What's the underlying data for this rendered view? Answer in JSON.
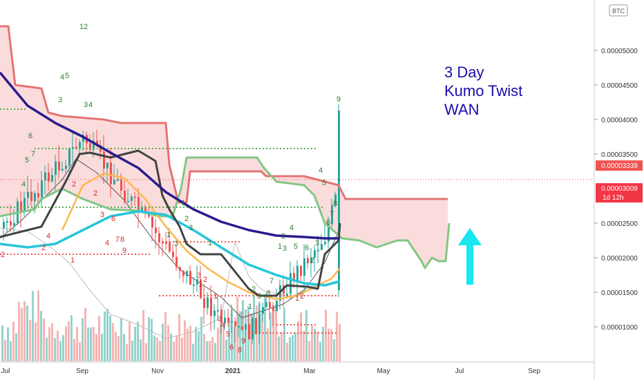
{
  "chart_data": {
    "type": "line",
    "symbol_currency": "BTC",
    "annotation": [
      "3 Day",
      "Kumo Twist",
      "WAN"
    ],
    "y_ticks": [
      "0.00005000",
      "0.00004500",
      "0.00004000",
      "0.00003500",
      "0.00002500",
      "0.00002000",
      "0.00001500",
      "0.00001000"
    ],
    "y_tick_values": [
      5e-05,
      4.5e-05,
      4e-05,
      3.5e-05,
      2.5e-05,
      2e-05,
      1.5e-05,
      1e-05
    ],
    "price_labels": [
      {
        "text": "0.00003339",
        "value": 3.339e-05,
        "color": "#f05350"
      },
      {
        "text": "0.00003009",
        "value": 3.009e-05,
        "color": "#f23645",
        "countdown": "1d 12h"
      }
    ],
    "x_ticks": [
      "Jul",
      "Sep",
      "Nov",
      "2021",
      "Mar",
      "May",
      "Jul",
      "Sep"
    ],
    "ylim": [
      5e-06,
      5.4e-05
    ],
    "colors": {
      "kumo_span_a": "#81c784",
      "kumo_span_b": "#e57373",
      "kumo_fill": "#f9d6d6",
      "slow_ma": "#2a1b8f",
      "mid_ma": "#26c6da",
      "fast_ma": "#ffb74d",
      "kijun": "#424242",
      "annotation": "#1a0dab",
      "arrow": "#18e7f0"
    },
    "series": [
      {
        "key": "kumo_span_b",
        "values": [
          [
            0,
            5.35e-05
          ],
          [
            12,
            5.35e-05
          ],
          [
            22,
            4.5e-05
          ],
          [
            60,
            4.45e-05
          ],
          [
            70,
            4.1e-05
          ],
          [
            90,
            4.05e-05
          ],
          [
            150,
            4e-05
          ],
          [
            175,
            3.95e-05
          ],
          [
            240,
            3.95e-05
          ],
          [
            245,
            3.35e-05
          ],
          [
            258,
            2.8e-05
          ],
          [
            270,
            2.8e-05
          ],
          [
            275,
            3.25e-05
          ],
          [
            345,
            3.25e-05
          ],
          [
            378,
            3.25e-05
          ],
          [
            385,
            3.18e-05
          ],
          [
            440,
            3.18e-05
          ],
          [
            490,
            3.05e-05
          ],
          [
            500,
            2.85e-05
          ],
          [
            648,
            2.85e-05
          ]
        ]
      },
      {
        "key": "kumo_span_a",
        "values": [
          [
            0,
            2.6e-05
          ],
          [
            50,
            2.7e-05
          ],
          [
            60,
            2.85e-05
          ],
          [
            90,
            3e-05
          ],
          [
            120,
            2.85e-05
          ],
          [
            160,
            2.7e-05
          ],
          [
            200,
            2.68e-05
          ],
          [
            230,
            2.6e-05
          ],
          [
            250,
            2.6e-05
          ],
          [
            262,
            3e-05
          ],
          [
            270,
            3.45e-05
          ],
          [
            372,
            3.45e-05
          ],
          [
            382,
            3.3e-05
          ],
          [
            400,
            3.1e-05
          ],
          [
            440,
            3.05e-05
          ],
          [
            455,
            2.9e-05
          ],
          [
            470,
            2.5e-05
          ],
          [
            495,
            2.28e-05
          ],
          [
            520,
            2.25e-05
          ],
          [
            545,
            2.15e-05
          ],
          [
            560,
            2.2e-05
          ],
          [
            575,
            2.25e-05
          ],
          [
            590,
            2.25e-05
          ],
          [
            600,
            2.1e-05
          ],
          [
            610,
            1.95e-05
          ],
          [
            615,
            1.85e-05
          ],
          [
            625,
            2e-05
          ],
          [
            635,
            1.95e-05
          ],
          [
            645,
            1.95e-05
          ],
          [
            650,
            2.5e-05
          ]
        ]
      },
      {
        "key": "slow_ma",
        "values": [
          [
            0,
            4.68e-05
          ],
          [
            40,
            4.2e-05
          ],
          [
            80,
            3.95e-05
          ],
          [
            120,
            3.75e-05
          ],
          [
            160,
            3.52e-05
          ],
          [
            200,
            3.3e-05
          ],
          [
            240,
            2.95e-05
          ],
          [
            280,
            2.7e-05
          ],
          [
            320,
            2.52e-05
          ],
          [
            360,
            2.4e-05
          ],
          [
            400,
            2.32e-05
          ],
          [
            440,
            2.3e-05
          ],
          [
            470,
            2.28e-05
          ],
          [
            492,
            2.28e-05
          ]
        ]
      },
      {
        "key": "mid_ma",
        "values": [
          [
            0,
            2.2e-05
          ],
          [
            40,
            2.15e-05
          ],
          [
            80,
            2.2e-05
          ],
          [
            120,
            2.4e-05
          ],
          [
            160,
            2.6e-05
          ],
          [
            200,
            2.67e-05
          ],
          [
            240,
            2.62e-05
          ],
          [
            280,
            2.4e-05
          ],
          [
            320,
            2.15e-05
          ],
          [
            360,
            1.9e-05
          ],
          [
            400,
            1.75e-05
          ],
          [
            440,
            1.63e-05
          ],
          [
            470,
            1.6e-05
          ],
          [
            492,
            1.66e-05
          ]
        ]
      },
      {
        "key": "fast_ma",
        "values": [
          [
            90,
            2.4e-05
          ],
          [
            120,
            3.05e-05
          ],
          [
            150,
            3.22e-05
          ],
          [
            180,
            3.15e-05
          ],
          [
            210,
            2.85e-05
          ],
          [
            240,
            2.45e-05
          ],
          [
            270,
            2.1e-05
          ],
          [
            300,
            1.85e-05
          ],
          [
            330,
            1.65e-05
          ],
          [
            360,
            1.5e-05
          ],
          [
            400,
            1.4e-05
          ],
          [
            430,
            1.45e-05
          ],
          [
            460,
            1.6e-05
          ],
          [
            480,
            1.7e-05
          ],
          [
            492,
            1.85e-05
          ]
        ]
      },
      {
        "key": "kijun",
        "values": [
          [
            0,
            2.3e-05
          ],
          [
            60,
            2.45e-05
          ],
          [
            95,
            3.1e-05
          ],
          [
            115,
            3.5e-05
          ],
          [
            130,
            3.52e-05
          ],
          [
            160,
            3.45e-05
          ],
          [
            200,
            3.55e-05
          ],
          [
            225,
            3.4e-05
          ],
          [
            235,
            2.9e-05
          ],
          [
            245,
            2.7e-05
          ],
          [
            260,
            2.45e-05
          ],
          [
            270,
            2.2e-05
          ],
          [
            290,
            2.05e-05
          ],
          [
            320,
            2.05e-05
          ],
          [
            340,
            1.8e-05
          ],
          [
            360,
            1.55e-05
          ],
          [
            375,
            1.45e-05
          ],
          [
            400,
            1.45e-05
          ],
          [
            415,
            1.6e-05
          ],
          [
            445,
            1.58e-05
          ],
          [
            460,
            1.55e-05
          ],
          [
            470,
            2.05e-05
          ],
          [
            490,
            2.25e-05
          ],
          [
            492,
            2.5e-05
          ]
        ]
      }
    ]
  }
}
